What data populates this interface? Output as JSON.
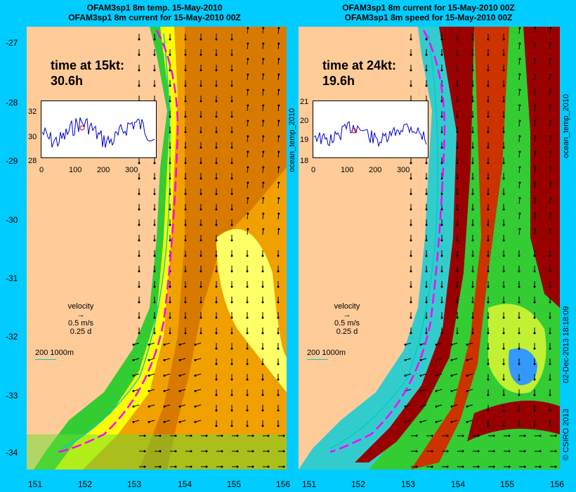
{
  "left": {
    "title_line1": "OFAM3sp1 8m temp. 15-May-2010",
    "title_line2": "OFAM3sp1 8m current for 15-May-2010 00Z",
    "time_label": "time at 15kt:",
    "time_value": "30.6h",
    "inset_y_ticks": [
      "32",
      "30",
      "28"
    ],
    "inset_x_ticks": [
      "0",
      "100",
      "200",
      "300"
    ],
    "side_label": "ocean_temp_2010"
  },
  "right": {
    "title_line1": "OFAM3sp1 8m current for 15-May-2010 00Z",
    "title_line2": "OFAM3sp1 8m speed for 15-May-2010 00Z",
    "time_label": "time at 24kt:",
    "time_value": "19.6h",
    "inset_y_ticks": [
      "21",
      "20",
      "19",
      "18"
    ],
    "inset_x_ticks": [
      "0",
      "100",
      "200",
      "300"
    ],
    "side_label": "ocean_temp_2010"
  },
  "y_ticks": [
    "-27",
    "-28",
    "-29",
    "-30",
    "-31",
    "-32",
    "-33",
    "-34"
  ],
  "x_ticks": [
    "151",
    "152",
    "153",
    "154",
    "155",
    "156"
  ],
  "legend": {
    "velocity_label": "velocity",
    "speed_label": "0.5 m/s",
    "time_label": "0.25 d",
    "depth_label": "200  1000m"
  },
  "credit_timestamp": "02-Dec-2013 18:18:09",
  "credit_copyright": "© CSIRO 2013",
  "colors": {
    "background": "#00ccff",
    "land": "#ffcc99",
    "warm": "#d97a00",
    "yellow": "#ffff00",
    "green": "#33cc33",
    "darkred": "#990000",
    "route": "#ff00ff",
    "isobath": "#00cccc"
  }
}
